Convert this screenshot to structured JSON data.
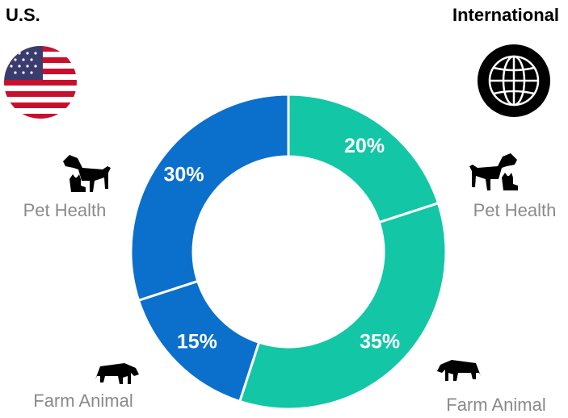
{
  "chart_data": {
    "type": "donut",
    "groups": [
      {
        "name": "International",
        "color": "#12c6a6",
        "categories": [
          "Pet Health",
          "Farm Animal"
        ],
        "values": [
          20,
          35
        ],
        "value_labels": [
          "20%",
          "35%"
        ]
      },
      {
        "name": "U.S.",
        "color": "#0b6fcc",
        "categories": [
          "Farm Animal",
          "Pet Health"
        ],
        "values": [
          15,
          30
        ],
        "value_labels": [
          "15%",
          "30%"
        ]
      }
    ]
  }
}
